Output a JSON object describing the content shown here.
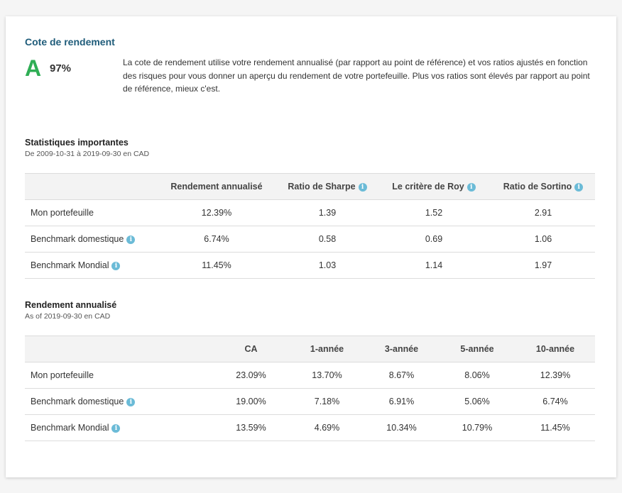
{
  "rating": {
    "title": "Cote de rendement",
    "grade": "A",
    "percent": "97%",
    "description": "La cote de rendement utilise votre rendement annualisé (par rapport au point de référence) et vos ratios ajustés en fonction des risques pour vous donner un aperçu du rendement de votre portefeuille. Plus vos ratios sont élevés par rapport au point de référence, mieux c'est."
  },
  "stats": {
    "title": "Statistiques importantes",
    "subtitle": "De 2009-10-31 à 2019-09-30 en CAD",
    "headers": [
      "",
      "Rendement annualisé",
      "Ratio de Sharpe",
      "Le critère de Roy",
      "Ratio de Sortino"
    ],
    "rows": [
      {
        "label": "Mon portefeuille",
        "values": [
          "12.39%",
          "1.39",
          "1.52",
          "2.91"
        ]
      },
      {
        "label": "Benchmark domestique",
        "values": [
          "6.74%",
          "0.58",
          "0.69",
          "1.06"
        ]
      },
      {
        "label": "Benchmark Mondial",
        "values": [
          "11.45%",
          "1.03",
          "1.14",
          "1.97"
        ]
      }
    ]
  },
  "annualized": {
    "title": "Rendement annualisé",
    "subtitle": "As of 2019-09-30 en CAD",
    "headers": [
      "",
      "CA",
      "1-année",
      "3-année",
      "5-année",
      "10-année"
    ],
    "rows": [
      {
        "label": "Mon portefeuille",
        "values": [
          "23.09%",
          "13.70%",
          "8.67%",
          "8.06%",
          "12.39%"
        ]
      },
      {
        "label": "Benchmark domestique",
        "values": [
          "19.00%",
          "7.18%",
          "6.91%",
          "5.06%",
          "6.74%"
        ]
      },
      {
        "label": "Benchmark Mondial",
        "values": [
          "13.59%",
          "4.69%",
          "10.34%",
          "10.79%",
          "11.45%"
        ]
      }
    ]
  }
}
